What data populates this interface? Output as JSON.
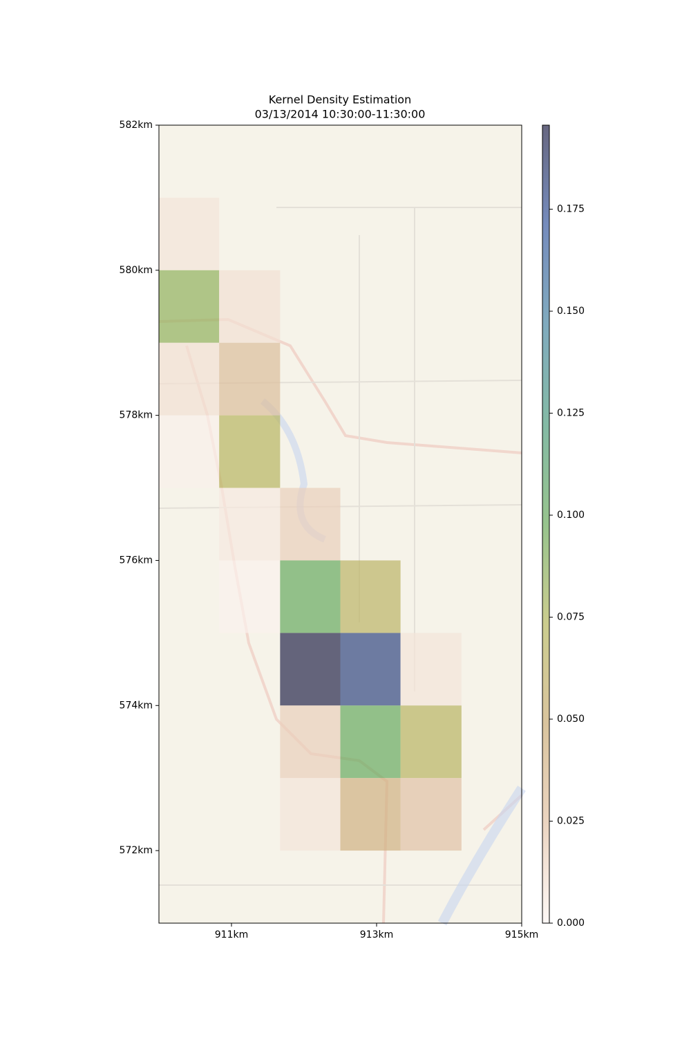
{
  "chart_data": {
    "type": "heatmap",
    "title": "Kernel Density Estimation",
    "subtitle": "03/13/2014 10:30:00-11:30:00",
    "xbins": [
      910,
      910.83,
      911.67,
      912.5,
      913.33,
      914.17,
      915
    ],
    "ybins": [
      582,
      581,
      580,
      579,
      578,
      577,
      576,
      575,
      574,
      573,
      572,
      571
    ],
    "z": [
      [
        0,
        0,
        0,
        0,
        0,
        0
      ],
      [
        0.008,
        0,
        0,
        0,
        0,
        0
      ],
      [
        0.085,
        0.01,
        0,
        0,
        0,
        0
      ],
      [
        0.01,
        0.03,
        0,
        0,
        0,
        0
      ],
      [
        0.003,
        0.07,
        0,
        0,
        0,
        0
      ],
      [
        0,
        0.006,
        0.018,
        0,
        0,
        0
      ],
      [
        0,
        0.002,
        0.1,
        0.065,
        0,
        0
      ],
      [
        0,
        0,
        0.195,
        0.18,
        0.008,
        0
      ],
      [
        0,
        0,
        0.018,
        0.1,
        0.068,
        0
      ],
      [
        0,
        0,
        0.008,
        0.042,
        0.025,
        0
      ],
      [
        0,
        0,
        0,
        0,
        0,
        0
      ]
    ],
    "xlim": [
      910,
      915
    ],
    "ylim": [
      571,
      582
    ],
    "xticks": [
      {
        "value": 911,
        "label": "911km"
      },
      {
        "value": 913,
        "label": "913km"
      },
      {
        "value": 915,
        "label": "915km"
      }
    ],
    "yticks": [
      {
        "value": 572,
        "label": "572km"
      },
      {
        "value": 574,
        "label": "574km"
      },
      {
        "value": 576,
        "label": "576km"
      },
      {
        "value": 578,
        "label": "578km"
      },
      {
        "value": 580,
        "label": "580km"
      },
      {
        "value": 582,
        "label": "582km"
      }
    ],
    "zlim": [
      0,
      0.1956
    ],
    "zticks": [
      {
        "value": 0,
        "label": "0.000"
      },
      {
        "value": 0.025,
        "label": "0.025"
      },
      {
        "value": 0.05,
        "label": "0.050"
      },
      {
        "value": 0.075,
        "label": "0.075"
      },
      {
        "value": 0.1,
        "label": "0.100"
      },
      {
        "value": 0.125,
        "label": "0.125"
      },
      {
        "value": 0.15,
        "label": "0.150"
      },
      {
        "value": 0.175,
        "label": "0.175"
      }
    ],
    "colormap": [
      "#fdf5f2",
      "#e2c2a6",
      "#c9ab74",
      "#b5b75e",
      "#6aaa5c",
      "#4f9c7e",
      "#4a86a2",
      "#3a5aa0",
      "#26264a"
    ],
    "alpha": 0.7
  }
}
